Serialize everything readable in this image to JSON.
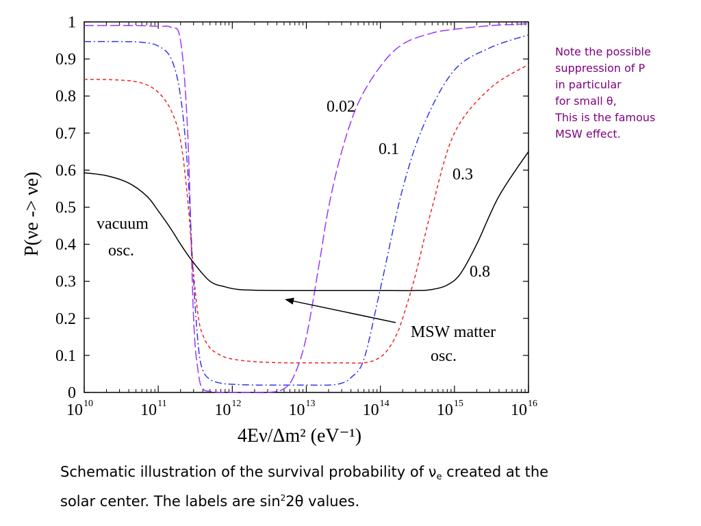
{
  "chart_data": {
    "type": "line",
    "xlabel": "4Eν/Δm² (eV⁻¹)",
    "ylabel": "P(νe -> νe)",
    "xscale": "log",
    "xlim": [
      10000000000.0,
      1e+16
    ],
    "ylim": [
      0,
      1
    ],
    "x_ticks": [
      {
        "base": "10",
        "exp": "10",
        "value": 10000000000.0
      },
      {
        "base": "10",
        "exp": "11",
        "value": 100000000000.0
      },
      {
        "base": "10",
        "exp": "12",
        "value": 1000000000000.0
      },
      {
        "base": "10",
        "exp": "13",
        "value": 10000000000000.0
      },
      {
        "base": "10",
        "exp": "14",
        "value": 100000000000000.0
      },
      {
        "base": "10",
        "exp": "15",
        "value": 1000000000000000.0
      },
      {
        "base": "10",
        "exp": "16",
        "value": 1e+16
      }
    ],
    "y_ticks": [
      "0",
      "0.1",
      "0.2",
      "0.3",
      "0.4",
      "0.5",
      "0.6",
      "0.7",
      "0.8",
      "0.9",
      "1"
    ],
    "series": [
      {
        "name": "0.02",
        "color": "#9933ff",
        "dash": "long-dash",
        "x": [
          10000000000.0,
          50000000000.0,
          100000000000.0,
          150000000000.0,
          200000000000.0,
          250000000000.0,
          300000000000.0,
          350000000000.0,
          400000000000.0,
          500000000000.0,
          700000000000.0,
          1000000000000.0,
          1500000000000.0,
          3000000000000.0,
          5000000000000.0,
          7000000000000.0,
          10000000000000.0,
          15000000000000.0,
          20000000000000.0,
          30000000000000.0,
          50000000000000.0,
          100000000000000.0,
          200000000000000.0,
          500000000000000.0,
          1000000000000000.0,
          3000000000000000.0,
          1e+16
        ],
        "y": [
          0.99,
          0.99,
          0.988,
          0.985,
          0.95,
          0.7,
          0.2,
          0.05,
          0.01,
          0.003,
          0.0,
          0.0,
          0.0,
          0.0,
          0.01,
          0.05,
          0.15,
          0.35,
          0.5,
          0.65,
          0.78,
          0.88,
          0.94,
          0.97,
          0.98,
          0.99,
          0.995
        ]
      },
      {
        "name": "0.1",
        "color": "#3333ee",
        "dash": "dash-dot",
        "x": [
          10000000000.0,
          30000000000.0,
          60000000000.0,
          100000000000.0,
          150000000000.0,
          200000000000.0,
          250000000000.0,
          300000000000.0,
          350000000000.0,
          400000000000.0,
          500000000000.0,
          700000000000.0,
          1000000000000.0,
          2000000000000.0,
          4000000000000.0,
          7000000000000.0,
          10000000000000.0,
          20000000000000.0,
          30000000000000.0,
          40000000000000.0,
          60000000000000.0,
          100000000000000.0,
          200000000000000.0,
          400000000000000.0,
          1000000000000000.0,
          3000000000000000.0,
          1e+16
        ],
        "y": [
          0.947,
          0.947,
          0.945,
          0.935,
          0.9,
          0.8,
          0.6,
          0.3,
          0.12,
          0.06,
          0.035,
          0.025,
          0.022,
          0.02,
          0.02,
          0.02,
          0.02,
          0.02,
          0.025,
          0.04,
          0.09,
          0.28,
          0.55,
          0.73,
          0.87,
          0.93,
          0.965
        ]
      },
      {
        "name": "0.3",
        "color": "#ee2222",
        "dash": "short-dash",
        "x": [
          10000000000.0,
          30000000000.0,
          60000000000.0,
          100000000000.0,
          150000000000.0,
          200000000000.0,
          250000000000.0,
          300000000000.0,
          350000000000.0,
          400000000000.0,
          500000000000.0,
          700000000000.0,
          1000000000000.0,
          2000000000000.0,
          5000000000000.0,
          10000000000000.0,
          30000000000000.0,
          60000000000000.0,
          90000000000000.0,
          120000000000000.0,
          160000000000000.0,
          200000000000000.0,
          300000000000000.0,
          500000000000000.0,
          1000000000000000.0,
          3000000000000000.0,
          1e+16
        ],
        "y": [
          0.845,
          0.843,
          0.835,
          0.81,
          0.76,
          0.68,
          0.52,
          0.32,
          0.2,
          0.155,
          0.12,
          0.1,
          0.09,
          0.083,
          0.08,
          0.08,
          0.08,
          0.08,
          0.09,
          0.11,
          0.15,
          0.2,
          0.32,
          0.5,
          0.7,
          0.82,
          0.885
        ]
      },
      {
        "name": "0.8",
        "color": "#000000",
        "dash": "solid",
        "x": [
          10000000000.0,
          20000000000.0,
          40000000000.0,
          70000000000.0,
          100000000000.0,
          150000000000.0,
          200000000000.0,
          300000000000.0,
          500000000000.0,
          800000000000.0,
          1200000000000.0,
          2000000000000.0,
          5000000000000.0,
          10000000000000.0,
          50000000000000.0,
          100000000000000.0,
          300000000000000.0,
          500000000000000.0,
          800000000000000.0,
          1200000000000000.0,
          2000000000000000.0,
          4000000000000000.0,
          1e+16
        ],
        "y": [
          0.593,
          0.585,
          0.565,
          0.53,
          0.49,
          0.44,
          0.4,
          0.35,
          0.3,
          0.285,
          0.278,
          0.276,
          0.275,
          0.275,
          0.275,
          0.275,
          0.275,
          0.278,
          0.29,
          0.32,
          0.4,
          0.53,
          0.65
        ]
      }
    ],
    "annotations": {
      "series_labels": [
        "0.02",
        "0.1",
        "0.3",
        "0.8"
      ],
      "vacuum_line1": "vacuum",
      "vacuum_line2": "osc.",
      "msw_line1": "MSW matter",
      "msw_line2": "osc.",
      "arrow": {
        "from": [
          50000000000000.0,
          0.18
        ],
        "to": [
          2100000000000.0,
          0.25
        ]
      }
    }
  },
  "note": {
    "lines": [
      "Note the possible",
      "suppression of P",
      "in particular",
      "for small θ,",
      "This is the famous",
      "MSW effect."
    ],
    "color": "#800080"
  },
  "caption": {
    "line1_pre": "Schematic illustration of the survival probability of ",
    "line1_nu": "ν",
    "line1_sub": "e",
    "line1_post": " created at the",
    "line2_pre": "solar center. The labels are sin",
    "line2_sup": "2",
    "line2_post": "2θ values."
  }
}
